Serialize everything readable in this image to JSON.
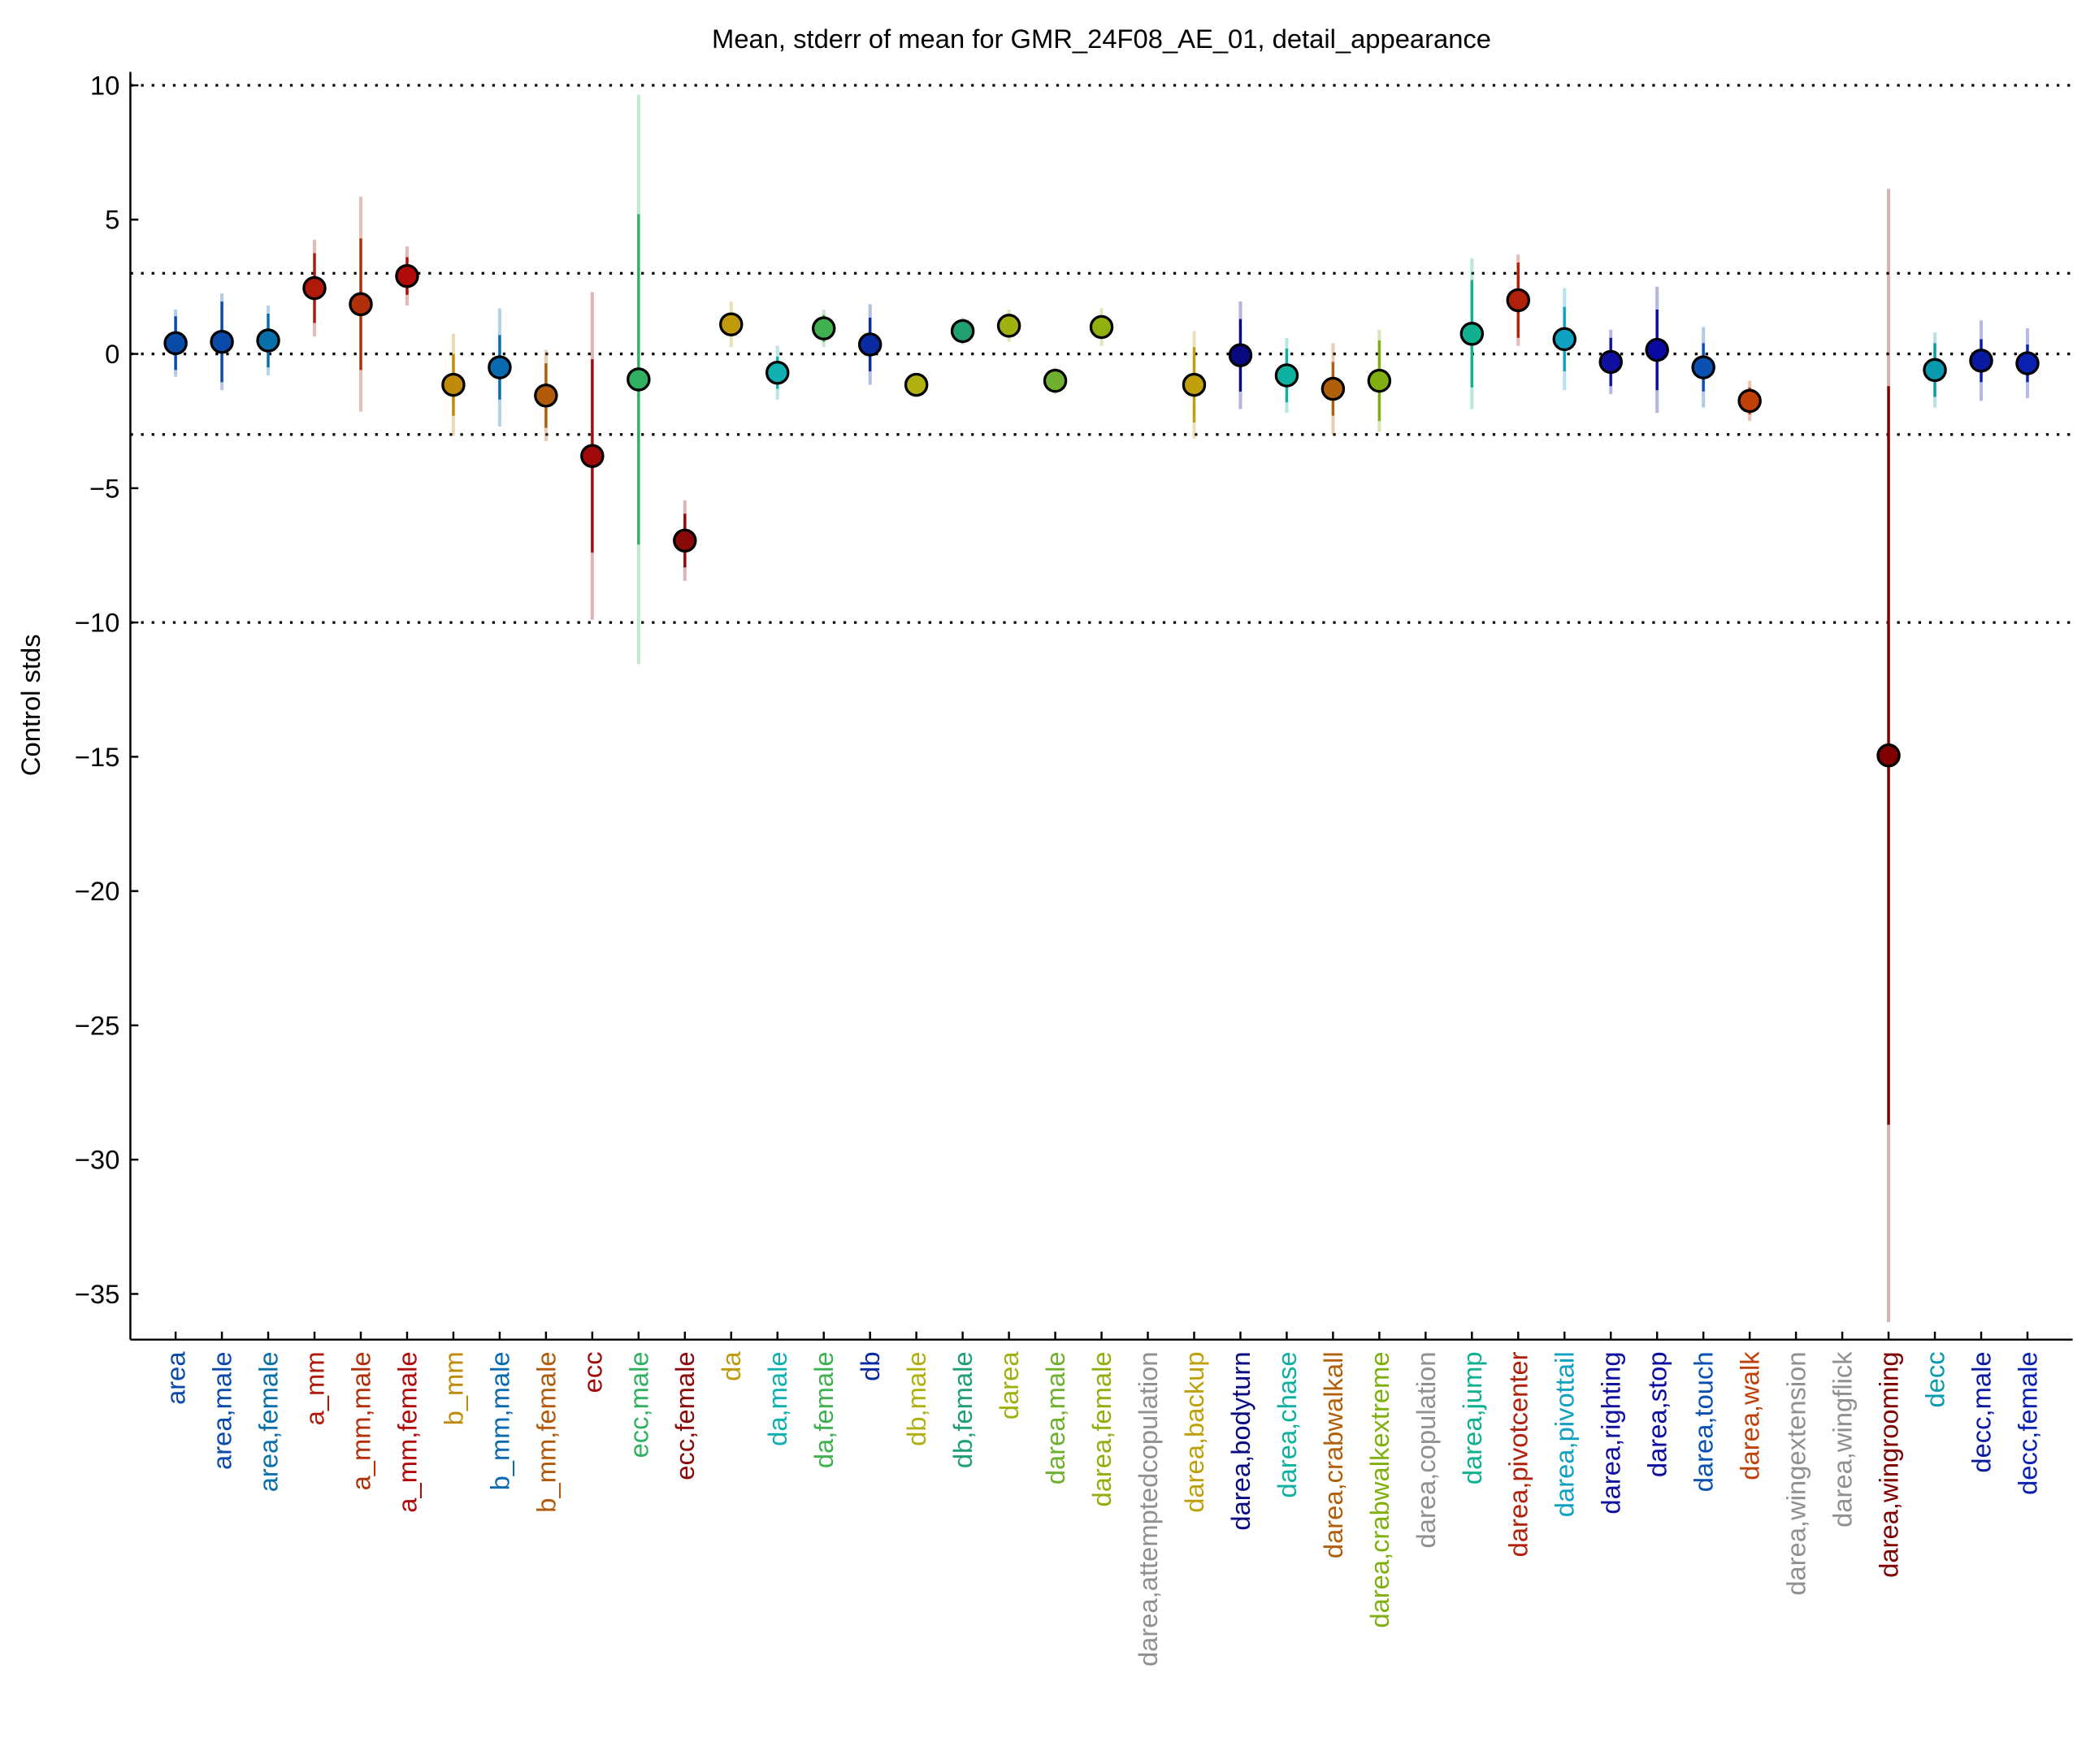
{
  "chart_data": {
    "type": "errorbar",
    "title": "Mean, stderr of mean for GMR_24F08_AE_01, detail_appearance",
    "y_label": "Control stds",
    "categories": [
      "area",
      "area,male",
      "area,female",
      "a_mm",
      "a_mm,male",
      "a_mm,female",
      "b_mm",
      "b_mm,male",
      "b_mm,female",
      "ecc",
      "ecc,male",
      "ecc,female",
      "da",
      "da,male",
      "da,female",
      "db",
      "db,male",
      "db,female",
      "darea",
      "darea,male",
      "darea,female",
      "darea,attemptedcopulation",
      "darea,backup",
      "darea,bodyturn",
      "darea,chase",
      "darea,crabwalkall",
      "darea,crabwalkextreme",
      "darea,copulation",
      "darea,jump",
      "darea,pivotcenter",
      "darea,pivottail",
      "darea,righting",
      "darea,stop",
      "darea,touch",
      "darea,walk",
      "darea,wingextension",
      "darea,wingflick",
      "darea,wingrooming",
      "decc",
      "decc,male",
      "decc,female"
    ],
    "values": [
      0.4,
      0.45,
      0.5,
      2.45,
      1.85,
      2.9,
      -1.15,
      -0.5,
      -1.55,
      -3.8,
      -0.95,
      -6.95,
      1.1,
      -0.7,
      0.95,
      0.35,
      -1.15,
      0.85,
      1.05,
      -1.0,
      1.0,
      null,
      -1.15,
      -0.05,
      -0.8,
      -1.3,
      -1.0,
      null,
      0.75,
      2.0,
      0.55,
      -0.3,
      0.15,
      -0.5,
      -1.75,
      null,
      null,
      -14.95,
      -0.6,
      -0.25,
      -0.35
    ],
    "stderr": [
      1.0,
      1.5,
      1.0,
      1.3,
      2.45,
      0.7,
      1.15,
      1.2,
      1.2,
      3.6,
      6.15,
      1.0,
      0.4,
      0.6,
      0.5,
      1.0,
      0.1,
      0.3,
      0.4,
      0.3,
      0.4,
      null,
      1.4,
      1.35,
      1.0,
      1.0,
      1.5,
      null,
      2.0,
      1.4,
      1.2,
      0.9,
      1.5,
      0.9,
      0.5,
      null,
      null,
      13.75,
      1.0,
      0.8,
      0.7
    ],
    "std": [
      1.25,
      1.8,
      1.3,
      1.8,
      4.0,
      1.1,
      1.9,
      2.2,
      1.7,
      6.1,
      10.6,
      1.5,
      0.85,
      1.0,
      0.7,
      1.5,
      0.2,
      0.5,
      0.6,
      0.5,
      0.7,
      null,
      2.0,
      2.0,
      1.4,
      1.7,
      1.9,
      null,
      2.8,
      1.7,
      1.9,
      1.2,
      2.35,
      1.5,
      0.75,
      null,
      null,
      21.1,
      1.4,
      1.5,
      1.3
    ],
    "colors": [
      "#0a4aa8",
      "#0b4aa8",
      "#0a6fa8",
      "#b01a0a",
      "#b0300a",
      "#b00a0a",
      "#c08a0a",
      "#0a6ab0",
      "#b05a0a",
      "#a00a0a",
      "#30b060",
      "#8a0a0a",
      "#c09a0a",
      "#10b0b0",
      "#40b050",
      "#0a2aa0",
      "#b0b010",
      "#20a070",
      "#a0b010",
      "#70b030",
      "#90b010",
      "#909090",
      "#c0a00a",
      "#0a0a80",
      "#10b0a0",
      "#b0600a",
      "#80b010",
      "#909090",
      "#10b090",
      "#b0200a",
      "#10a0c0",
      "#1010a0",
      "#0a0aa0",
      "#0a50b0",
      "#c0400a",
      "#909090",
      "#909090",
      "#800000",
      "#0a9ab0",
      "#0a1aa0",
      "#0a20b0"
    ],
    "ylim": [
      -36.7,
      10.5
    ],
    "yticks": [
      10,
      5,
      0,
      {
        "value": -5,
        "label": "−5"
      },
      {
        "value": -10,
        "label": "−10"
      },
      {
        "value": -15,
        "label": "−15"
      },
      {
        "value": -20,
        "label": "−20"
      },
      {
        "value": -25,
        "label": "−25"
      },
      {
        "value": -30,
        "label": "−30"
      },
      {
        "value": -35,
        "label": "−35"
      }
    ],
    "reference_lines": [
      10,
      3,
      0,
      -3,
      -10
    ]
  }
}
